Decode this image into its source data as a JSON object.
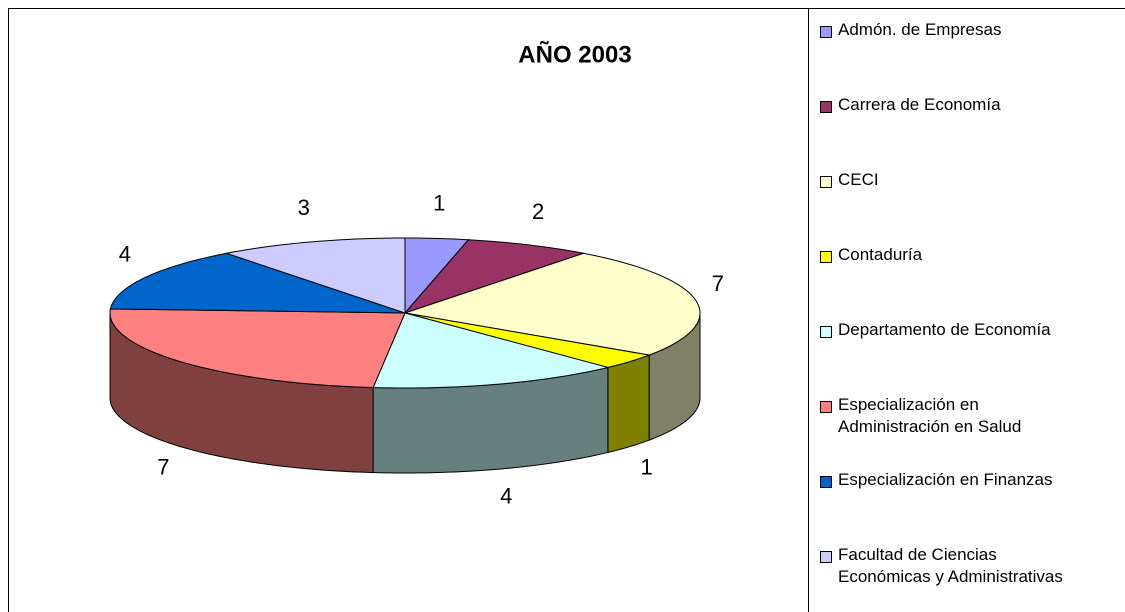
{
  "chart_data": {
    "type": "pie3d",
    "title": "AÑO 2003",
    "categories": [
      "Admón. de Empresas",
      "Carrera de Economía",
      "CECI",
      "Contaduría",
      "Departamento de Economía",
      "Especialización en\nAdministración en Salud",
      "Especialización en Finanzas",
      "Facultad de Ciencias\nEconómicas y Administrativas"
    ],
    "values": [
      1,
      2,
      7,
      1,
      4,
      7,
      4,
      3
    ],
    "colors": [
      "#9999ff",
      "#993366",
      "#ffffcc",
      "#ffff00",
      "#ccffff",
      "#ff8080",
      "#0066cc",
      "#ccccff"
    ],
    "legend": "right"
  }
}
